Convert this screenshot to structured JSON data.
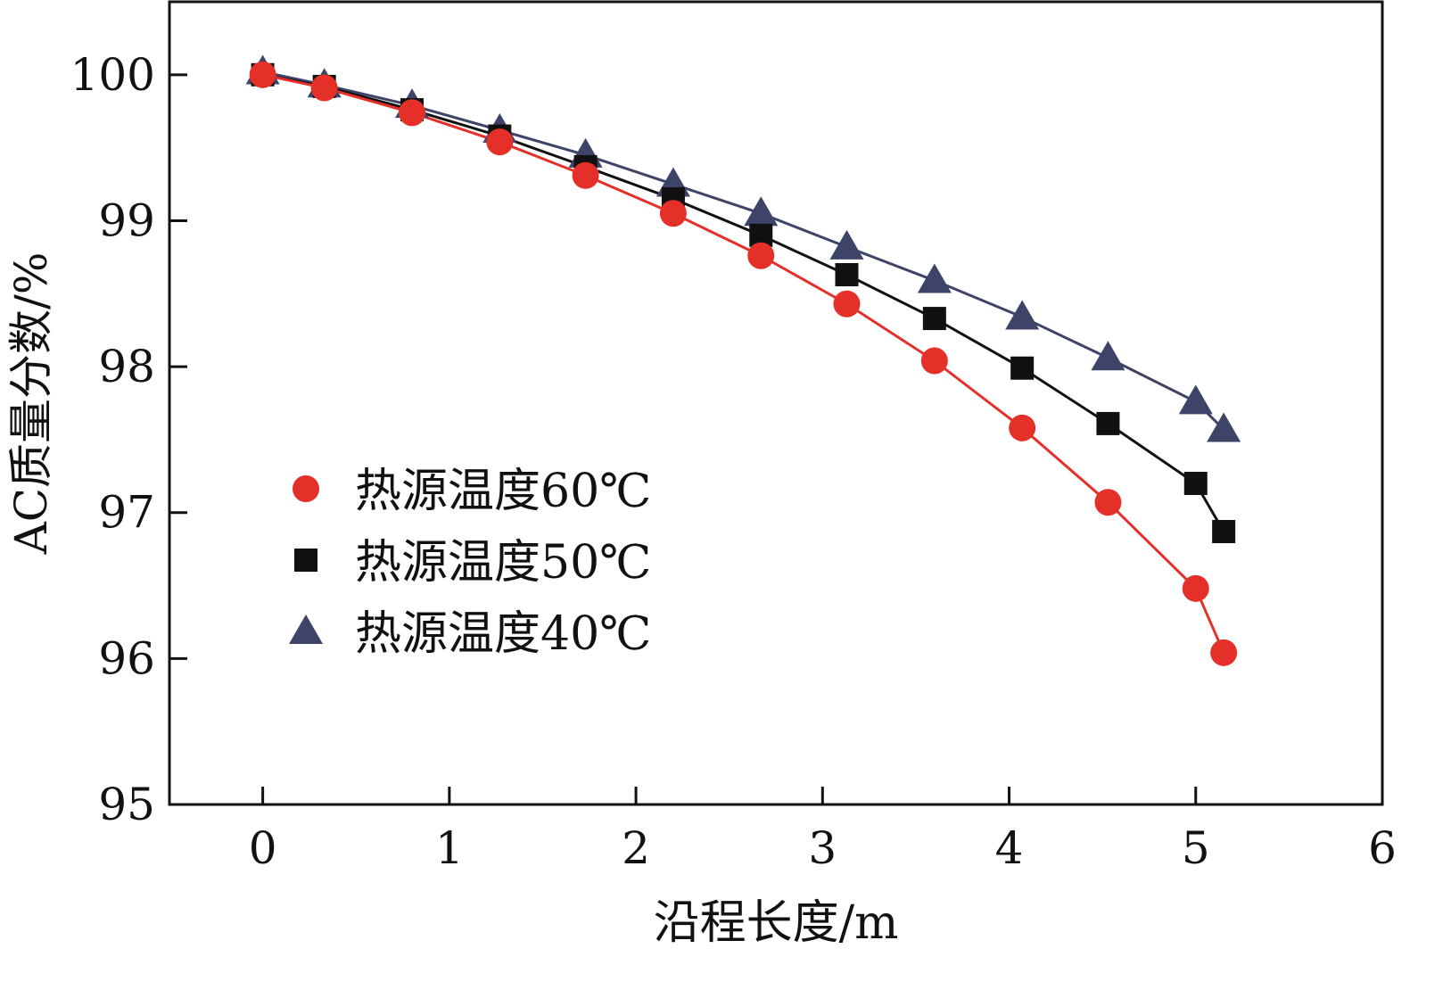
{
  "chart_data": {
    "type": "line",
    "title": "",
    "xlabel": "沿程长度/m",
    "ylabel": "AC质量分数/%",
    "xlim": [
      -0.5,
      6
    ],
    "ylim": [
      95,
      100.5
    ],
    "xticks": [
      0,
      1,
      2,
      3,
      4,
      5,
      6
    ],
    "yticks": [
      95,
      96,
      97,
      98,
      99,
      100
    ],
    "grid": false,
    "legend_position": "lower-left",
    "x": [
      0,
      0.33,
      0.8,
      1.27,
      1.73,
      2.2,
      2.67,
      3.13,
      3.6,
      4.07,
      4.53,
      5.0,
      5.15
    ],
    "series": [
      {
        "name": "热源温度60℃",
        "marker": "circle",
        "color": "#e5302a",
        "line_color": "#e5302a",
        "values": [
          100.0,
          99.91,
          99.74,
          99.54,
          99.31,
          99.05,
          98.76,
          98.43,
          98.04,
          97.58,
          97.07,
          96.48,
          96.04
        ]
      },
      {
        "name": "热源温度50℃",
        "marker": "square",
        "color": "#111111",
        "line_color": "#111111",
        "values": [
          100.0,
          99.92,
          99.76,
          99.58,
          99.37,
          99.15,
          98.9,
          98.63,
          98.33,
          97.99,
          97.61,
          97.2,
          96.87
        ]
      },
      {
        "name": "热源温度40℃",
        "marker": "triangle",
        "color": "#3e4468",
        "line_color": "#3e4468",
        "values": [
          100.02,
          99.93,
          99.79,
          99.62,
          99.45,
          99.25,
          99.05,
          98.82,
          98.59,
          98.34,
          98.06,
          97.76,
          97.57
        ]
      }
    ]
  }
}
